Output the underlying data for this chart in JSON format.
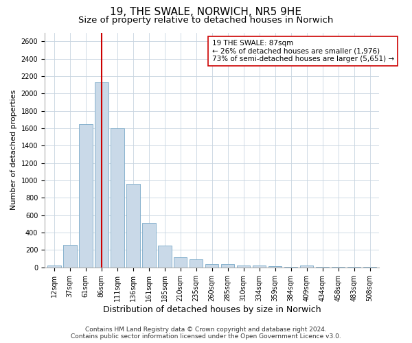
{
  "title": "19, THE SWALE, NORWICH, NR5 9HE",
  "subtitle": "Size of property relative to detached houses in Norwich",
  "xlabel": "Distribution of detached houses by size in Norwich",
  "ylabel": "Number of detached properties",
  "categories": [
    "12sqm",
    "37sqm",
    "61sqm",
    "86sqm",
    "111sqm",
    "136sqm",
    "161sqm",
    "185sqm",
    "210sqm",
    "235sqm",
    "260sqm",
    "285sqm",
    "310sqm",
    "334sqm",
    "359sqm",
    "384sqm",
    "409sqm",
    "434sqm",
    "458sqm",
    "483sqm",
    "508sqm"
  ],
  "values": [
    25,
    260,
    1650,
    2130,
    1600,
    960,
    510,
    250,
    115,
    90,
    40,
    40,
    25,
    20,
    15,
    10,
    20,
    10,
    5,
    10,
    5
  ],
  "bar_color": "#c9d9e8",
  "bar_edge_color": "#7aaac8",
  "marker_index": 3,
  "marker_color": "#cc0000",
  "annotation_text": "19 THE SWALE: 87sqm\n← 26% of detached houses are smaller (1,976)\n73% of semi-detached houses are larger (5,651) →",
  "annotation_box_color": "#ffffff",
  "annotation_box_edge": "#cc0000",
  "ylim": [
    0,
    2700
  ],
  "yticks": [
    0,
    200,
    400,
    600,
    800,
    1000,
    1200,
    1400,
    1600,
    1800,
    2000,
    2200,
    2400,
    2600
  ],
  "grid_color": "#c8d4e0",
  "footer1": "Contains HM Land Registry data © Crown copyright and database right 2024.",
  "footer2": "Contains public sector information licensed under the Open Government Licence v3.0.",
  "title_fontsize": 11,
  "subtitle_fontsize": 9.5,
  "xlabel_fontsize": 9,
  "ylabel_fontsize": 8,
  "tick_fontsize": 7,
  "footer_fontsize": 6.5,
  "annotation_fontsize": 7.5
}
